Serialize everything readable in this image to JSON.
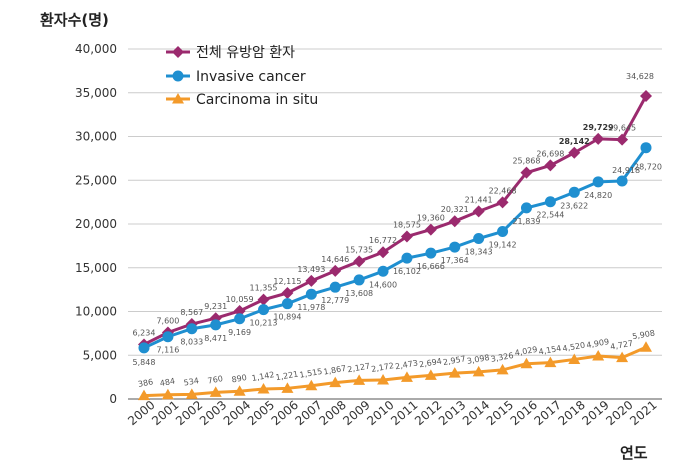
{
  "chart_data": {
    "type": "line",
    "ylabel": "환자수(명)",
    "xlabel": "연도",
    "ylim": [
      0,
      40000
    ],
    "yticks": [
      0,
      5000,
      10000,
      15000,
      20000,
      25000,
      30000,
      35000,
      40000
    ],
    "ytick_labels": [
      "0",
      "5,000",
      "10,000",
      "15,000",
      "20,000",
      "25,000",
      "30,000",
      "35,000",
      "40,000"
    ],
    "categories": [
      "2000",
      "2001",
      "2002",
      "2003",
      "2004",
      "2005",
      "2006",
      "2007",
      "2008",
      "2009",
      "2010",
      "2011",
      "2012",
      "2013",
      "2014",
      "2015",
      "2016",
      "2017",
      "2018",
      "2019",
      "2020",
      "2021"
    ],
    "series": [
      {
        "name": "전체 유방암 환자",
        "color": "#9b2a6e",
        "marker": "diamond",
        "values": [
          6234,
          7600,
          8567,
          9231,
          10059,
          11355,
          12115,
          13493,
          14646,
          15735,
          16772,
          18575,
          19360,
          20321,
          21441,
          22468,
          25868,
          26698,
          28142,
          29729,
          29645,
          34628
        ],
        "labels": [
          "6,234",
          "7,600",
          "8,567",
          "9,231",
          "10,059",
          "11,355",
          "12,115",
          "13,493",
          "14,646",
          "15,735",
          "16,772",
          "18,575",
          "19,360",
          "20,321",
          "21,441",
          "22,468",
          "25,868",
          "26,698",
          "28,142",
          "29,729",
          "29,645",
          "34,628"
        ]
      },
      {
        "name": "Invasive cancer",
        "color": "#1f8fd0",
        "marker": "circle",
        "values": [
          5848,
          7116,
          8033,
          8471,
          9169,
          10213,
          10894,
          11978,
          12779,
          13608,
          14600,
          16102,
          16666,
          17364,
          18343,
          19142,
          21839,
          22544,
          23622,
          24820,
          24918,
          28720
        ],
        "labels": [
          "5,848",
          "7,116",
          "8,033",
          "8,471",
          "9,169",
          "10,213",
          "10,894",
          "11,978",
          "12,779",
          "13,608",
          "14,600",
          "16,102",
          "16,666",
          "17,364",
          "18,343",
          "19,142",
          "21,839",
          "22,544",
          "23,622",
          "24,820",
          "24,918",
          "28,720"
        ]
      },
      {
        "name": "Carcinoma in situ",
        "color": "#f39a2a",
        "marker": "triangle",
        "values": [
          386,
          484,
          534,
          760,
          890,
          1142,
          1221,
          1515,
          1867,
          2127,
          2172,
          2473,
          2694,
          2957,
          3098,
          3326,
          4029,
          4154,
          4520,
          4909,
          4727,
          5908
        ],
        "labels": [
          "386",
          "484",
          "534",
          "760",
          "890",
          "1,142",
          "1,221",
          "1,515",
          "1,867",
          "2,127",
          "2,172",
          "2,473",
          "2,694",
          "2,957",
          "3,098",
          "3,326",
          "4,029",
          "4,154",
          "4,520",
          "4,909",
          "4,727",
          "5,908"
        ]
      }
    ],
    "legend_position": "top-left"
  }
}
